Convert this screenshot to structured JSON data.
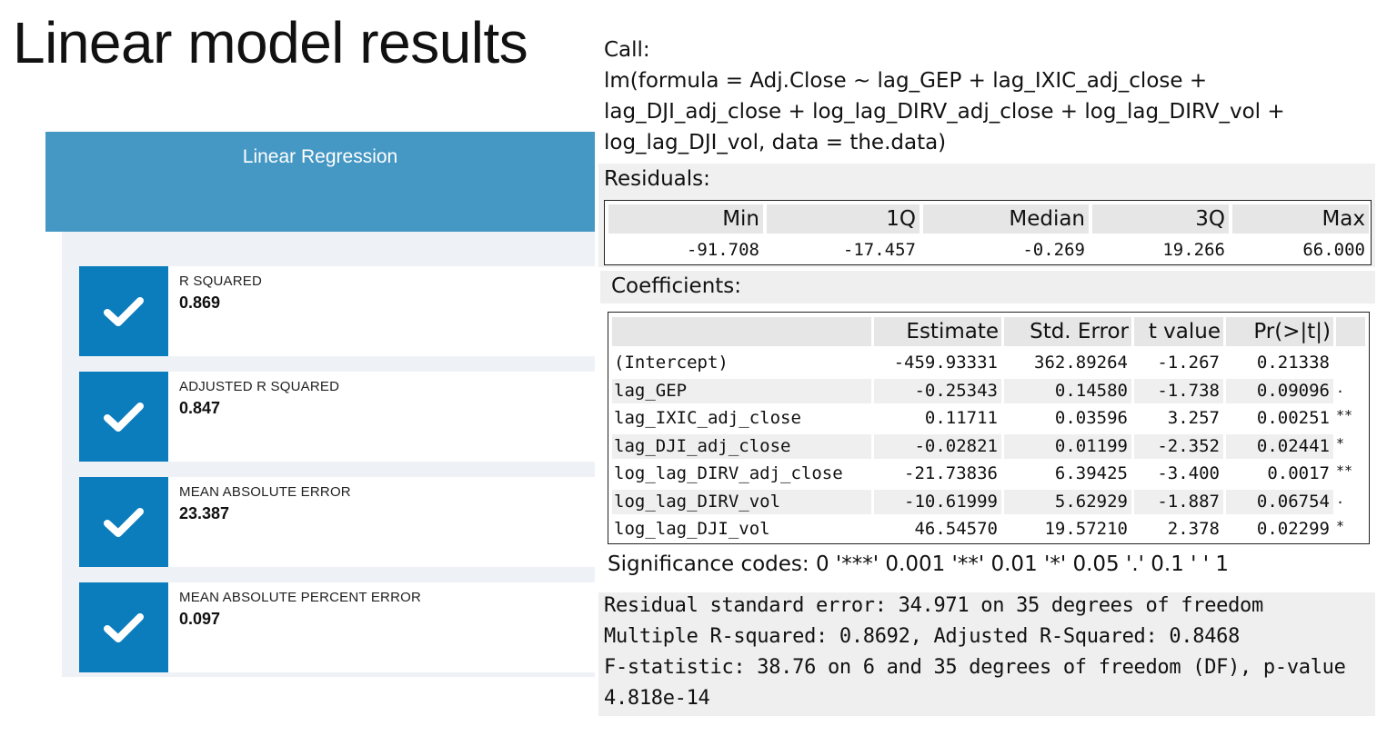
{
  "title": "Linear model results",
  "panel": {
    "header": "Linear Regression",
    "metrics": [
      {
        "label": "R SQUARED",
        "value": "0.869",
        "icon": "checkmark-icon"
      },
      {
        "label": "ADJUSTED R SQUARED",
        "value": "0.847",
        "icon": "checkmark-icon"
      },
      {
        "label": "MEAN ABSOLUTE ERROR",
        "value": "23.387",
        "icon": "checkmark-icon"
      },
      {
        "label": "MEAN ABSOLUTE PERCENT ERROR",
        "value": "0.097",
        "icon": "checkmark-icon"
      }
    ],
    "colors": {
      "header_bg": "#4597c4",
      "check_bg": "#0b7dbd",
      "body_bg": "#eef2f7"
    }
  },
  "r_output": {
    "call_label": "Call:",
    "formula_lines": [
      "lm(formula = Adj.Close ~ lag_GEP + lag_IXIC_adj_close +",
      "lag_DJI_adj_close + log_lag_DIRV_adj_close + log_lag_DIRV_vol +",
      "log_lag_DJI_vol, data = the.data)"
    ],
    "residuals": {
      "label": "Residuals:",
      "headers": [
        "Min",
        "1Q",
        "Median",
        "3Q",
        "Max"
      ],
      "values": [
        "-91.708",
        "-17.457",
        "-0.269",
        "19.266",
        "66.000"
      ]
    },
    "coefficients": {
      "label": "Coefficients:",
      "headers": [
        "Estimate",
        "Std. Error",
        "t value",
        "Pr(>|t|)"
      ],
      "rows": [
        {
          "name": "(Intercept)",
          "estimate": "-459.93331",
          "std_error": "362.89264",
          "t_value": "-1.267",
          "p_value": "0.21338",
          "sig": ""
        },
        {
          "name": "lag_GEP",
          "estimate": "-0.25343",
          "std_error": "0.14580",
          "t_value": "-1.738",
          "p_value": "0.09096",
          "sig": "."
        },
        {
          "name": "lag_IXIC_adj_close",
          "estimate": "0.11711",
          "std_error": "0.03596",
          "t_value": "3.257",
          "p_value": "0.00251",
          "sig": "**"
        },
        {
          "name": "lag_DJI_adj_close",
          "estimate": "-0.02821",
          "std_error": "0.01199",
          "t_value": "-2.352",
          "p_value": "0.02441",
          "sig": "*"
        },
        {
          "name": "log_lag_DIRV_adj_close",
          "estimate": "-21.73836",
          "std_error": "6.39425",
          "t_value": "-3.400",
          "p_value": "0.0017",
          "sig": "**"
        },
        {
          "name": "log_lag_DIRV_vol",
          "estimate": "-10.61999",
          "std_error": "5.62929",
          "t_value": "-1.887",
          "p_value": "0.06754",
          "sig": "."
        },
        {
          "name": "log_lag_DJI_vol",
          "estimate": "46.54570",
          "std_error": "19.57210",
          "t_value": "2.378",
          "p_value": "0.02299",
          "sig": "*"
        }
      ]
    },
    "significance_codes": "Significance codes: 0 '***' 0.001 '**' 0.01 '*' 0.05 '.' 0.1 ' ' 1",
    "summary_lines": [
      "Residual standard error: 34.971 on 35 degrees of freedom",
      "Multiple R-squared: 0.8692, Adjusted R-Squared: 0.8468",
      "F-statistic: 38.76 on 6 and 35 degrees of freedom (DF), p-value",
      "4.818e-14"
    ]
  }
}
